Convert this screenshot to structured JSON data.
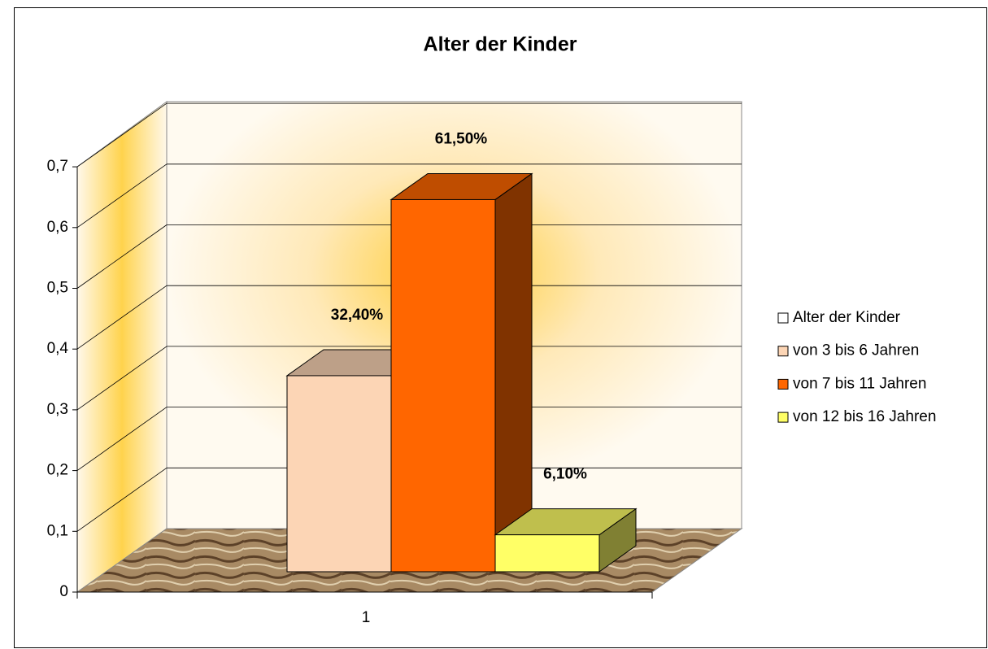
{
  "chart_data": {
    "type": "bar3d",
    "title": "Alter der Kinder",
    "categories": [
      "1"
    ],
    "series": [
      {
        "name": "Alter der Kinder",
        "color": "#ffffff",
        "values": [
          null
        ]
      },
      {
        "name": "von 3 bis 6 Jahren",
        "color": "#fcd5b5",
        "values": [
          0.324
        ],
        "value_labels": [
          "32,40%"
        ]
      },
      {
        "name": "von 7 bis 11 Jahren",
        "color": "#ff6600",
        "values": [
          0.615
        ],
        "value_labels": [
          "61,50%"
        ]
      },
      {
        "name": "von 12 bis 16 Jahren",
        "color": "#ffff66",
        "values": [
          0.061
        ],
        "value_labels": [
          "6,10%"
        ]
      }
    ],
    "ylim": [
      0,
      0.7
    ],
    "yticks": [
      0,
      {
        "value": 0.1,
        "label": "0,1"
      },
      {
        "value": 0.2,
        "label": "0,2"
      },
      {
        "value": 0.3,
        "label": "0,3"
      },
      {
        "value": 0.4,
        "label": "0,4"
      },
      {
        "value": 0.5,
        "label": "0,5"
      },
      {
        "value": 0.6,
        "label": "0,6"
      },
      {
        "value": 0.7,
        "label": "0,7"
      }
    ],
    "grid": true,
    "legend": "right"
  }
}
